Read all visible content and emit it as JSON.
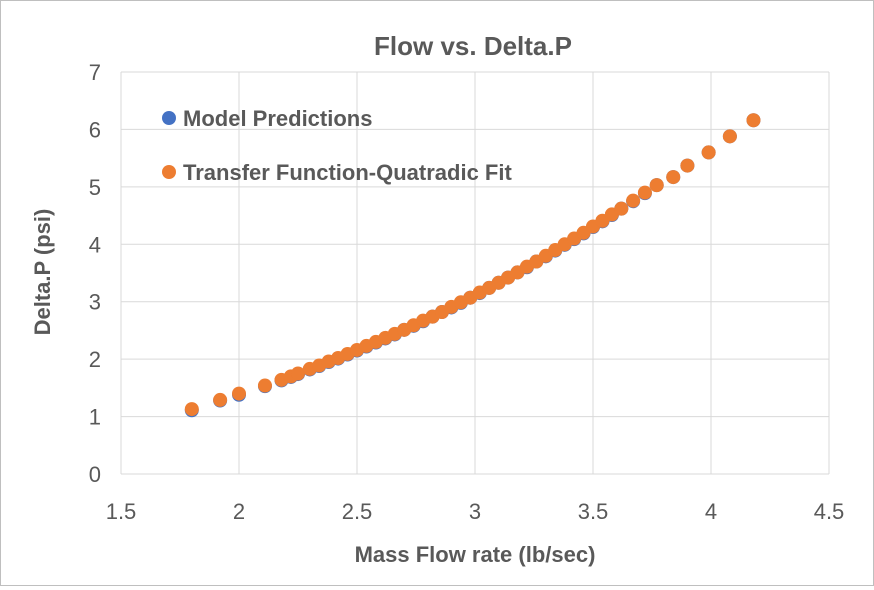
{
  "chart_data": {
    "type": "scatter",
    "title": "Flow vs. Delta.P",
    "xlabel": "Mass Flow rate (lb/sec)",
    "ylabel": "Delta.P (psi)",
    "xlim": [
      1.5,
      4.5
    ],
    "ylim": [
      0,
      7
    ],
    "x_ticks": [
      "1.5",
      "2",
      "2.5",
      "3",
      "3.5",
      "4",
      "4.5"
    ],
    "y_ticks": [
      "0",
      "1",
      "2",
      "3",
      "4",
      "5",
      "6",
      "7"
    ],
    "grid": true,
    "legend_position": "top-left",
    "series": [
      {
        "name": "Model Predictions",
        "color": "#4472c4",
        "points": [
          [
            1.8,
            1.11
          ],
          [
            1.92,
            1.28
          ],
          [
            2.0,
            1.38
          ],
          [
            2.11,
            1.53
          ],
          [
            2.18,
            1.63
          ],
          [
            2.22,
            1.69
          ],
          [
            2.25,
            1.74
          ],
          [
            2.3,
            1.82
          ],
          [
            2.34,
            1.88
          ],
          [
            2.38,
            1.95
          ],
          [
            2.42,
            2.01
          ],
          [
            2.46,
            2.08
          ],
          [
            2.5,
            2.15
          ],
          [
            2.54,
            2.22
          ],
          [
            2.58,
            2.29
          ],
          [
            2.62,
            2.36
          ],
          [
            2.66,
            2.43
          ],
          [
            2.7,
            2.51
          ],
          [
            2.74,
            2.58
          ],
          [
            2.78,
            2.66
          ],
          [
            2.82,
            2.74
          ],
          [
            2.86,
            2.82
          ],
          [
            2.9,
            2.9
          ],
          [
            2.94,
            2.98
          ],
          [
            2.98,
            3.07
          ],
          [
            3.02,
            3.15
          ],
          [
            3.06,
            3.24
          ],
          [
            3.1,
            3.33
          ],
          [
            3.14,
            3.42
          ],
          [
            3.18,
            3.51
          ],
          [
            3.22,
            3.6
          ],
          [
            3.26,
            3.7
          ],
          [
            3.3,
            3.79
          ],
          [
            3.34,
            3.89
          ],
          [
            3.38,
            3.99
          ],
          [
            3.42,
            4.09
          ],
          [
            3.46,
            4.19
          ],
          [
            3.5,
            4.3
          ],
          [
            3.54,
            4.4
          ],
          [
            3.58,
            4.51
          ],
          [
            3.62,
            4.62
          ],
          [
            3.67,
            4.75
          ],
          [
            3.72,
            4.89
          ],
          [
            3.77,
            5.03
          ],
          [
            3.84,
            5.17
          ],
          [
            3.9,
            5.37
          ],
          [
            3.99,
            5.6
          ],
          [
            4.08,
            5.88
          ],
          [
            4.18,
            6.16
          ]
        ]
      },
      {
        "name": "Transfer Function-Quatradic Fit",
        "color": "#ed7d31",
        "points": [
          [
            1.8,
            1.13
          ],
          [
            1.92,
            1.29
          ],
          [
            2.0,
            1.4
          ],
          [
            2.11,
            1.54
          ],
          [
            2.18,
            1.64
          ],
          [
            2.22,
            1.7
          ],
          [
            2.25,
            1.75
          ],
          [
            2.3,
            1.83
          ],
          [
            2.34,
            1.89
          ],
          [
            2.38,
            1.96
          ],
          [
            2.42,
            2.02
          ],
          [
            2.46,
            2.09
          ],
          [
            2.5,
            2.16
          ],
          [
            2.54,
            2.23
          ],
          [
            2.58,
            2.3
          ],
          [
            2.62,
            2.37
          ],
          [
            2.66,
            2.44
          ],
          [
            2.7,
            2.51
          ],
          [
            2.74,
            2.59
          ],
          [
            2.78,
            2.67
          ],
          [
            2.82,
            2.74
          ],
          [
            2.86,
            2.82
          ],
          [
            2.9,
            2.91
          ],
          [
            2.94,
            2.99
          ],
          [
            2.98,
            3.07
          ],
          [
            3.02,
            3.16
          ],
          [
            3.06,
            3.24
          ],
          [
            3.1,
            3.33
          ],
          [
            3.14,
            3.42
          ],
          [
            3.18,
            3.51
          ],
          [
            3.22,
            3.61
          ],
          [
            3.26,
            3.7
          ],
          [
            3.3,
            3.8
          ],
          [
            3.34,
            3.9
          ],
          [
            3.38,
            4.0
          ],
          [
            3.42,
            4.1
          ],
          [
            3.46,
            4.2
          ],
          [
            3.5,
            4.31
          ],
          [
            3.54,
            4.41
          ],
          [
            3.58,
            4.52
          ],
          [
            3.62,
            4.62
          ],
          [
            3.67,
            4.76
          ],
          [
            3.72,
            4.9
          ],
          [
            3.77,
            5.03
          ],
          [
            3.84,
            5.17
          ],
          [
            3.9,
            5.37
          ],
          [
            3.99,
            5.6
          ],
          [
            4.08,
            5.88
          ],
          [
            4.18,
            6.16
          ]
        ]
      }
    ]
  }
}
